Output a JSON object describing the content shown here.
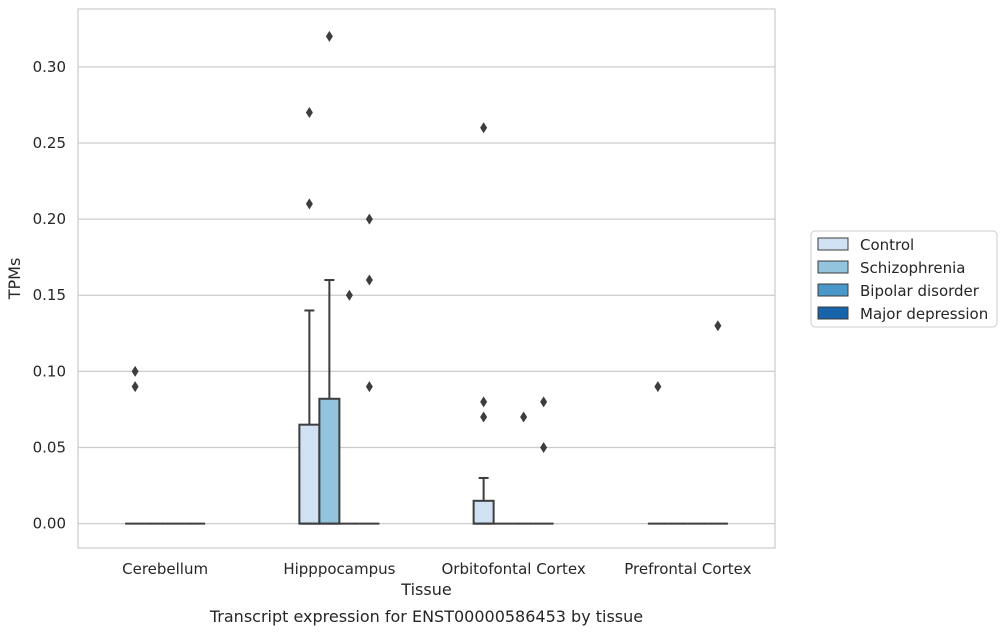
{
  "chart_data": {
    "type": "boxplot",
    "xlabel": "Tissue",
    "ylabel": "TPMs",
    "caption": "Transcript expression for ENST00000586453 by tissue",
    "ylim": [
      -0.016,
      0.338
    ],
    "yticks": [
      0.0,
      0.05,
      0.1,
      0.15,
      0.2,
      0.25,
      0.3
    ],
    "ytick_labels": [
      "0.00",
      "0.05",
      "0.10",
      "0.15",
      "0.20",
      "0.25",
      "0.30"
    ],
    "grid": "horizontal",
    "legend_position": "right-outside",
    "categories": [
      "Cerebellum",
      "Hipppocampus",
      "Orbitofontal Cortex",
      "Prefrontal Cortex"
    ],
    "series": [
      {
        "name": "Control",
        "color": "#cfe1f2"
      },
      {
        "name": "Schizophrenia",
        "color": "#93c4de"
      },
      {
        "name": "Bipolar disorder",
        "color": "#4a98c9"
      },
      {
        "name": "Major depression",
        "color": "#1764ab"
      }
    ],
    "boxes": [
      [
        {
          "q1": 0,
          "median": 0,
          "q3": 0,
          "whislo": 0,
          "whishi": 0,
          "fliers": [
            0.1,
            0.09
          ]
        },
        {
          "q1": 0,
          "median": 0,
          "q3": 0,
          "whislo": 0,
          "whishi": 0,
          "fliers": []
        },
        {
          "q1": 0,
          "median": 0,
          "q3": 0,
          "whislo": 0,
          "whishi": 0,
          "fliers": []
        },
        {
          "q1": 0,
          "median": 0,
          "q3": 0,
          "whislo": 0,
          "whishi": 0,
          "fliers": []
        }
      ],
      [
        {
          "q1": 0,
          "median": 0,
          "q3": 0.065,
          "whislo": 0,
          "whishi": 0.14,
          "fliers": [
            0.27,
            0.21
          ]
        },
        {
          "q1": 0,
          "median": 0,
          "q3": 0.082,
          "whislo": 0,
          "whishi": 0.16,
          "fliers": [
            0.32
          ]
        },
        {
          "q1": 0,
          "median": 0,
          "q3": 0,
          "whislo": 0,
          "whishi": 0,
          "fliers": [
            0.15
          ]
        },
        {
          "q1": 0,
          "median": 0,
          "q3": 0,
          "whislo": 0,
          "whishi": 0,
          "fliers": [
            0.2,
            0.16,
            0.09
          ]
        }
      ],
      [
        {
          "q1": 0,
          "median": 0,
          "q3": 0.015,
          "whislo": 0,
          "whishi": 0.03,
          "fliers": [
            0.26,
            0.08,
            0.07
          ]
        },
        {
          "q1": 0,
          "median": 0,
          "q3": 0,
          "whislo": 0,
          "whishi": 0,
          "fliers": []
        },
        {
          "q1": 0,
          "median": 0,
          "q3": 0,
          "whislo": 0,
          "whishi": 0,
          "fliers": [
            0.07
          ]
        },
        {
          "q1": 0,
          "median": 0,
          "q3": 0,
          "whislo": 0,
          "whishi": 0,
          "fliers": [
            0.08,
            0.05
          ]
        }
      ],
      [
        {
          "q1": 0,
          "median": 0,
          "q3": 0,
          "whislo": 0,
          "whishi": 0,
          "fliers": [
            0.09
          ]
        },
        {
          "q1": 0,
          "median": 0,
          "q3": 0,
          "whislo": 0,
          "whishi": 0,
          "fliers": []
        },
        {
          "q1": 0,
          "median": 0,
          "q3": 0,
          "whislo": 0,
          "whishi": 0,
          "fliers": []
        },
        {
          "q1": 0,
          "median": 0,
          "q3": 0,
          "whislo": 0,
          "whishi": 0,
          "fliers": [
            0.13
          ]
        }
      ]
    ]
  }
}
